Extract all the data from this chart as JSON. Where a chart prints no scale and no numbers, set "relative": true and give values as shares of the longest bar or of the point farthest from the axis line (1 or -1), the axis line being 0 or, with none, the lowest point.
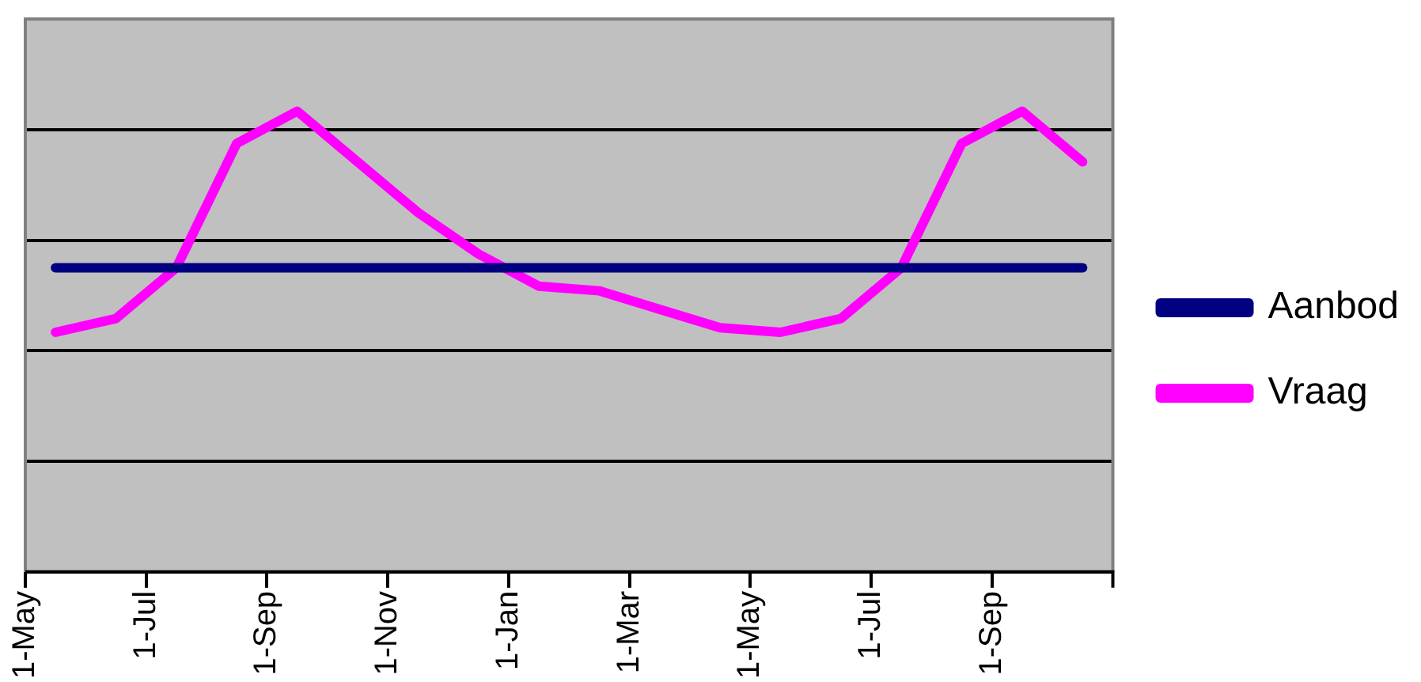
{
  "chart_data": {
    "type": "line",
    "relative": true,
    "grid": "y",
    "legend": "right",
    "marker": "none",
    "categories": [
      "1-May",
      null,
      null,
      null,
      "1-Jul",
      null,
      null,
      null,
      "1-Sep",
      null,
      null,
      null,
      "1-Nov",
      null,
      null,
      null,
      "1-Jan",
      null,
      null,
      null,
      "1-Mar",
      null,
      null,
      null,
      "1-May",
      null,
      null,
      null,
      "1-Jul",
      null,
      null,
      null,
      "1-Sep",
      null,
      null,
      null,
      null
    ],
    "series": [
      {
        "name": "Aanbod",
        "color": "#000080",
        "values": [
          null,
          0.66,
          null,
          0.66,
          null,
          0.66,
          null,
          0.66,
          null,
          0.66,
          null,
          0.66,
          null,
          0.66,
          null,
          0.66,
          null,
          0.66,
          null,
          0.66,
          null,
          0.66,
          null,
          0.66,
          null,
          0.66,
          null,
          0.66,
          null,
          0.66,
          null,
          0.66,
          null,
          0.66,
          null,
          0.66,
          null
        ]
      },
      {
        "name": "Vraag",
        "color": "#ff00ff",
        "values": [
          null,
          0.52,
          null,
          0.55,
          null,
          0.66,
          null,
          0.93,
          null,
          1,
          null,
          0.89,
          null,
          0.78,
          null,
          0.69,
          null,
          0.62,
          null,
          0.61,
          null,
          0.57,
          null,
          0.53,
          null,
          0.52,
          null,
          0.55,
          null,
          0.66,
          null,
          0.93,
          null,
          1,
          null,
          0.89,
          null
        ]
      }
    ]
  }
}
